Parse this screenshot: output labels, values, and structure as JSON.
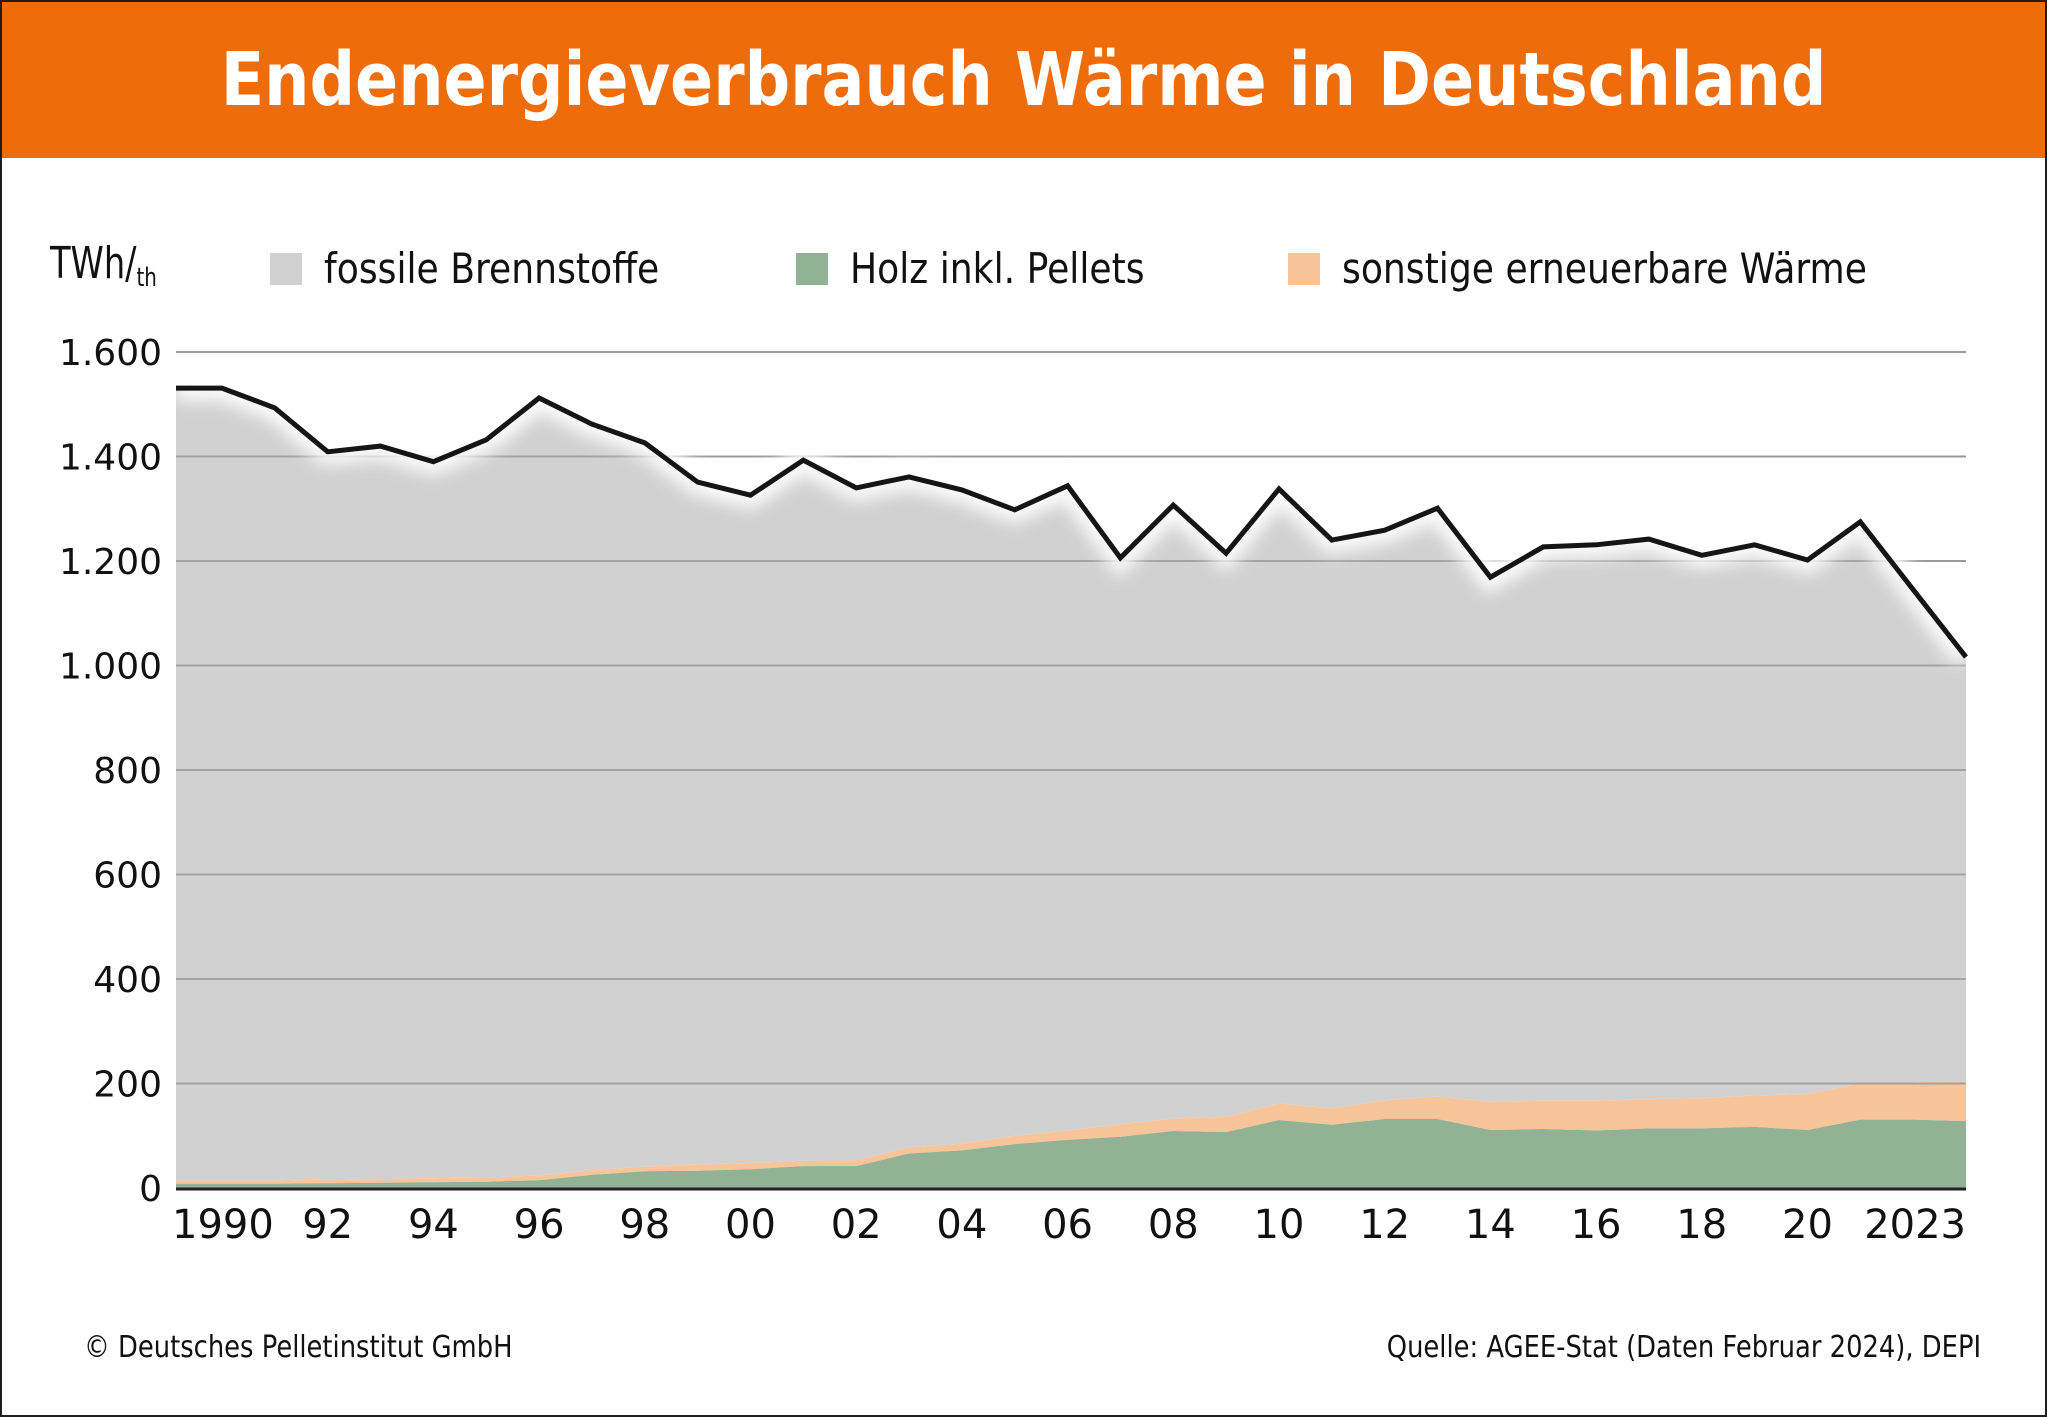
{
  "header": {
    "title": "Endenergieverbrauch Wärme in Deutschland"
  },
  "colors": {
    "title_bar": "#ee6c0a",
    "fossil": "#d1d1d2",
    "wood": "#92b295",
    "other_renewable": "#f8c59a",
    "total_line": "#151515",
    "grid": "#9a9a9a"
  },
  "legend": {
    "unit_main": "TWh/",
    "unit_sub": "th",
    "items": [
      {
        "label": "fossile Brennstoffe",
        "color": "#d1d1d2"
      },
      {
        "label": "Holz inkl. Pellets",
        "color": "#92b295"
      },
      {
        "label": "sonstige erneuerbare Wärme",
        "color": "#f8c59a"
      }
    ]
  },
  "footer": {
    "copyright": "© Deutsches Pelletinstitut GmbH",
    "source": "Quelle: AGEE-Stat (Daten Februar 2024), DEPI"
  },
  "chart_data": {
    "type": "area",
    "title": "Endenergieverbrauch Wärme in Deutschland",
    "xlabel": "",
    "ylabel": "TWh/th",
    "ylim": [
      0,
      1600
    ],
    "yticks": [
      0,
      200,
      400,
      600,
      800,
      1000,
      1200,
      1400,
      1600
    ],
    "ytick_labels": [
      "0",
      "200",
      "400",
      "600",
      "800",
      "1.000",
      "1.200",
      "1.400",
      "1.600"
    ],
    "xlim": [
      1990,
      2023
    ],
    "xticks": [
      1990,
      1992,
      1994,
      1996,
      1998,
      2000,
      2002,
      2004,
      2006,
      2008,
      2010,
      2012,
      2014,
      2016,
      2018,
      2020,
      2023
    ],
    "xtick_labels": [
      "1990",
      "92",
      "94",
      "96",
      "98",
      "00",
      "02",
      "04",
      "06",
      "08",
      "10",
      "12",
      "14",
      "16",
      "18",
      "20",
      "2023"
    ],
    "grid": true,
    "legend_position": "top",
    "stacked": true,
    "x": [
      1990,
      1991,
      1992,
      1993,
      1994,
      1995,
      1996,
      1997,
      1998,
      1999,
      2000,
      2001,
      2002,
      2003,
      2004,
      2005,
      2006,
      2007,
      2008,
      2009,
      2010,
      2011,
      2012,
      2013,
      2014,
      2015,
      2016,
      2017,
      2018,
      2019,
      2020,
      2021,
      2022,
      2023
    ],
    "series": [
      {
        "name": "Holz inkl. Pellets",
        "values": [
          8,
          8,
          9,
          10,
          11,
          12,
          15,
          25,
          32,
          33,
          36,
          42,
          42,
          66,
          72,
          84,
          92,
          98,
          109,
          107,
          130,
          121,
          132,
          132,
          111,
          113,
          110,
          114,
          114,
          117,
          111,
          131,
          131,
          128
        ]
      },
      {
        "name": "sonstige erneuerbare Wärme",
        "values": [
          6,
          6,
          7,
          7,
          8,
          8,
          9,
          9,
          9,
          12,
          12,
          10,
          11,
          12,
          13,
          16,
          18,
          24,
          24,
          29,
          32,
          31,
          36,
          43,
          54,
          54,
          57,
          56,
          58,
          60,
          69,
          69,
          71,
          77
        ]
      },
      {
        "name": "fossile Brennstoffe",
        "values": [
          1517,
          1479,
          1393,
          1403,
          1371,
          1412,
          1488,
          1428,
          1385,
          1306,
          1278,
          1341,
          1287,
          1283,
          1251,
          1198,
          1234,
          1084,
          1174,
          1079,
          1176,
          1088,
          1091,
          1126,
          1004,
          1060,
          1064,
          1072,
          1039,
          1054,
          1022,
          1075,
          943,
          811
        ]
      }
    ],
    "total_line": {
      "name": "Gesamt",
      "values": [
        1531,
        1493,
        1409,
        1420,
        1390,
        1432,
        1512,
        1462,
        1426,
        1351,
        1326,
        1393,
        1340,
        1361,
        1336,
        1298,
        1344,
        1206,
        1307,
        1215,
        1338,
        1240,
        1259,
        1301,
        1169,
        1227,
        1231,
        1242,
        1211,
        1231,
        1202,
        1275,
        1145,
        1016
      ]
    }
  }
}
